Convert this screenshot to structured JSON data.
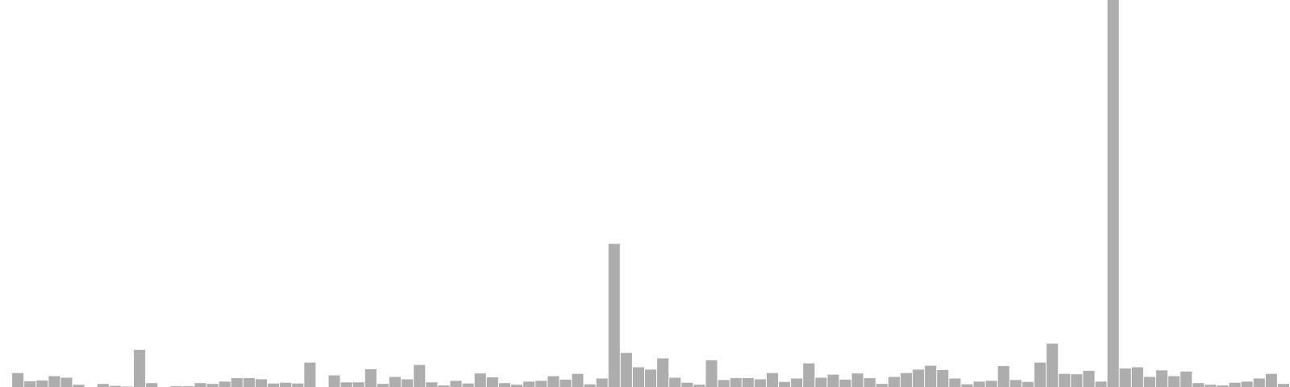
{
  "chart_data": {
    "type": "bar",
    "title": "",
    "xlabel": "",
    "ylabel": "",
    "grid": false,
    "legend": "none",
    "bar_color": "#adadad",
    "background": "#ffffff",
    "ylim": [
      0,
      100
    ],
    "values": [
      0,
      3.6,
      1.5,
      1.7,
      2.8,
      2.4,
      0.6,
      0,
      0.8,
      0.3,
      0.1,
      9.6,
      1,
      0,
      0.2,
      0.2,
      1,
      0.8,
      1.4,
      2.3,
      2.3,
      2,
      0.9,
      1.1,
      0.9,
      6.3,
      0,
      3,
      1.2,
      1.2,
      4.6,
      0.8,
      2.6,
      2,
      5.7,
      1.2,
      0.4,
      1.6,
      0.9,
      3.5,
      2.5,
      1,
      0.6,
      1.4,
      1.6,
      2.8,
      1.9,
      3.4,
      0.7,
      2.2,
      37,
      8.8,
      5.1,
      4.5,
      7.4,
      2.4,
      1.1,
      0.6,
      6.9,
      1.8,
      2.3,
      2.3,
      2,
      3.6,
      1.3,
      2.2,
      6.1,
      2.4,
      3.2,
      1.9,
      3.5,
      2.3,
      0.8,
      2.6,
      3.6,
      4.5,
      5.5,
      4.4,
      2.2,
      0.7,
      1.4,
      1.6,
      5.4,
      1.8,
      1.3,
      6.3,
      11.2,
      3.4,
      3.3,
      4.2,
      1.4,
      100,
      4.8,
      5.1,
      2.6,
      4.3,
      2.8,
      4,
      1,
      0.6,
      0.4,
      1.1,
      1.4,
      2.2,
      3.4,
      0.8
    ]
  }
}
